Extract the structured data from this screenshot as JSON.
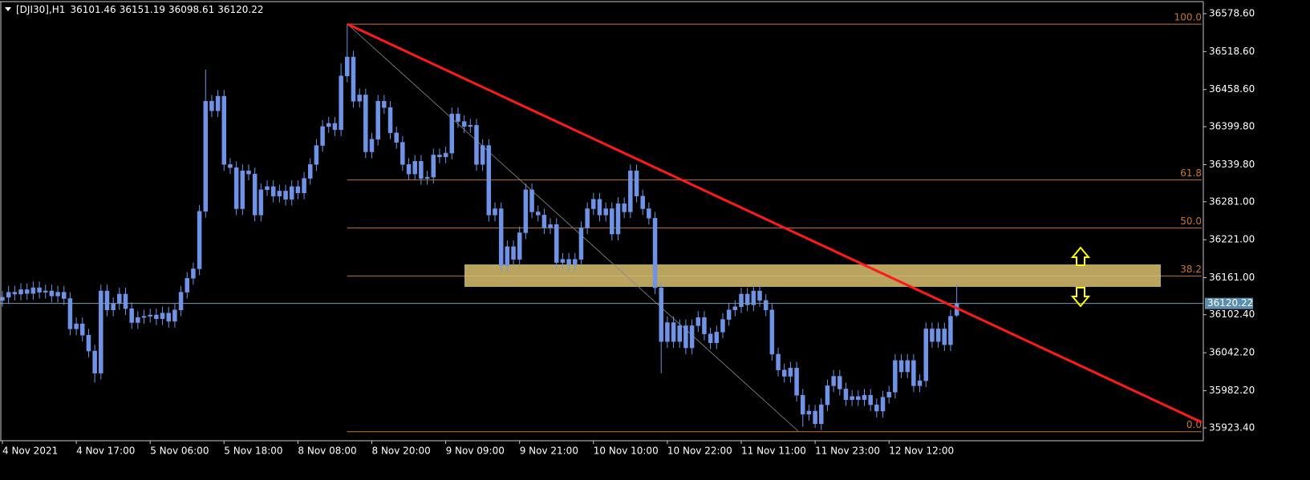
{
  "chart_data": {
    "type": "candlestick",
    "symbol": "[DJI30],H1",
    "candle_color": "#6f93e6",
    "categories": [
      "4 Nov 2021",
      null,
      null,
      null,
      null,
      null,
      null,
      null,
      null,
      null,
      null,
      null,
      "4 Nov 17:00",
      null,
      null,
      null,
      null,
      null,
      null,
      null,
      null,
      null,
      null,
      null,
      "5 Nov 06:00",
      null,
      null,
      null,
      null,
      null,
      null,
      null,
      null,
      null,
      null,
      null,
      "5 Nov 18:00",
      null,
      null,
      null,
      null,
      null,
      null,
      null,
      null,
      null,
      null,
      null,
      "8 Nov 08:00",
      null,
      null,
      null,
      null,
      null,
      null,
      null,
      null,
      null,
      null,
      null,
      "8 Nov 20:00",
      null,
      null,
      null,
      null,
      null,
      null,
      null,
      null,
      null,
      null,
      null,
      "9 Nov 09:00",
      null,
      null,
      null,
      null,
      null,
      null,
      null,
      null,
      null,
      null,
      null,
      "9 Nov 21:00",
      null,
      null,
      null,
      null,
      null,
      null,
      null,
      null,
      null,
      null,
      null,
      "10 Nov 10:00",
      null,
      null,
      null,
      null,
      null,
      null,
      null,
      null,
      null,
      null,
      null,
      "10 Nov 22:00",
      null,
      null,
      null,
      null,
      null,
      null,
      null,
      null,
      null,
      null,
      null,
      "11 Nov 11:00",
      null,
      null,
      null,
      null,
      null,
      null,
      null,
      null,
      null,
      null,
      null,
      "11 Nov 23:00",
      null,
      null,
      null,
      null,
      null,
      null,
      null,
      null,
      null,
      null,
      null,
      "12 Nov 12:00",
      null,
      null,
      null,
      null,
      null,
      null,
      null,
      null,
      null,
      null,
      null
    ],
    "open": [
      36125,
      36130,
      36138,
      36135,
      36142,
      36136,
      36145,
      36138,
      36140,
      36132,
      36138,
      36128,
      36080,
      36088,
      36070,
      36045,
      36010,
      36140,
      36110,
      36120,
      36135,
      36112,
      36090,
      36098,
      36100,
      36102,
      36096,
      36105,
      36092,
      36110,
      36138,
      36160,
      36175,
      36266,
      36440,
      36425,
      36448,
      36340,
      36335,
      36270,
      36330,
      36325,
      36260,
      36300,
      36305,
      36290,
      36298,
      36285,
      36305,
      36295,
      36318,
      36340,
      36370,
      36400,
      36405,
      36395,
      36480,
      36510,
      36440,
      36450,
      36360,
      36380,
      36440,
      36430,
      36390,
      36375,
      36340,
      36325,
      36345,
      36318,
      36320,
      36355,
      36352,
      36358,
      36420,
      36408,
      36400,
      36402,
      36340,
      36370,
      36260,
      36270,
      36180,
      36210,
      36190,
      36232,
      36300,
      36265,
      36260,
      36240,
      36245,
      36185,
      36190,
      36182,
      36190,
      36240,
      36270,
      36285,
      36260,
      36270,
      36230,
      36278,
      36265,
      36330,
      36290,
      36270,
      36255,
      36145,
      36060,
      36090,
      36060,
      36085,
      36050,
      36085,
      36098,
      36072,
      36058,
      36075,
      36095,
      36110,
      36115,
      36135,
      36118,
      36140,
      36125,
      36110,
      36040,
      36015,
      36005,
      36018,
      35975,
      35945,
      35950,
      35930,
      35960,
      35990,
      36005,
      35985,
      35968,
      35973,
      35968,
      35975,
      35960,
      35950,
      35972,
      35980,
      36030,
      36012,
      36030,
      35990,
      35998,
      36080,
      36060,
      36080,
      36055,
      36101.46
    ],
    "high": [
      36140,
      36148,
      36148,
      36152,
      36152,
      36155,
      36155,
      36150,
      36150,
      36148,
      36148,
      36138,
      36098,
      36098,
      36080,
      36055,
      36150,
      36150,
      36130,
      36145,
      36145,
      36122,
      36108,
      36110,
      36112,
      36112,
      36115,
      36115,
      36120,
      36148,
      36170,
      36185,
      36276,
      36490,
      36450,
      36458,
      36458,
      36350,
      36345,
      36340,
      36340,
      36335,
      36310,
      36315,
      36315,
      36308,
      36308,
      36315,
      36315,
      36328,
      36350,
      36380,
      36410,
      36415,
      36415,
      36500,
      36562,
      36520,
      36460,
      36460,
      36390,
      36450,
      36450,
      36440,
      36400,
      36385,
      36350,
      36355,
      36355,
      36330,
      36365,
      36365,
      36368,
      36430,
      36430,
      36418,
      36412,
      36412,
      36380,
      36380,
      36280,
      36280,
      36220,
      36220,
      36242,
      36310,
      36310,
      36275,
      36270,
      36255,
      36255,
      36200,
      36200,
      36200,
      36250,
      36280,
      36295,
      36295,
      36280,
      36280,
      36288,
      36288,
      36340,
      36340,
      36300,
      36280,
      36265,
      36155,
      36100,
      36100,
      36095,
      36095,
      36095,
      36108,
      36108,
      36082,
      36085,
      36105,
      36120,
      36125,
      36145,
      36145,
      36150,
      36150,
      36135,
      36120,
      36050,
      36025,
      36028,
      36028,
      35985,
      35960,
      35960,
      35970,
      36000,
      36015,
      36015,
      35995,
      35983,
      35983,
      35985,
      35985,
      35970,
      35982,
      35990,
      36040,
      36040,
      36040,
      36040,
      36008,
      36090,
      36090,
      36090,
      36090,
      36110,
      36151.19
    ],
    "low": [
      36115,
      36120,
      36125,
      36125,
      36126,
      36126,
      36128,
      36128,
      36122,
      36122,
      36118,
      36070,
      36070,
      36060,
      36035,
      35995,
      36000,
      36100,
      36100,
      36110,
      36102,
      36080,
      36080,
      36088,
      36090,
      36086,
      36086,
      36082,
      36082,
      36100,
      36128,
      36150,
      36165,
      36256,
      36415,
      36415,
      36330,
      36325,
      36260,
      36260,
      36315,
      36250,
      36250,
      36290,
      36280,
      36280,
      36275,
      36275,
      36285,
      36285,
      36308,
      36330,
      36360,
      36390,
      36385,
      36385,
      36470,
      36430,
      36430,
      36350,
      36350,
      36370,
      36420,
      36380,
      36365,
      36330,
      36315,
      36315,
      36308,
      36308,
      36310,
      36342,
      36342,
      36348,
      36398,
      36390,
      36390,
      36330,
      36330,
      36250,
      36250,
      36170,
      36170,
      36180,
      36180,
      36222,
      36255,
      36250,
      36230,
      36230,
      36175,
      36175,
      36172,
      36172,
      36180,
      36230,
      36260,
      36250,
      36250,
      36220,
      36220,
      36255,
      36255,
      36280,
      36260,
      36245,
      36135,
      36010,
      36050,
      36050,
      36050,
      36040,
      36040,
      36075,
      36062,
      36048,
      36048,
      36065,
      36085,
      36100,
      36105,
      36108,
      36108,
      36115,
      36100,
      36030,
      36005,
      35995,
      35995,
      35965,
      35925,
      35935,
      35923.4,
      35920,
      35950,
      35980,
      35975,
      35958,
      35958,
      35958,
      35958,
      35950,
      35940,
      35940,
      35962,
      35970,
      36002,
      36002,
      35980,
      35980,
      35988,
      36050,
      36050,
      36045,
      36045,
      36098.61
    ],
    "close": [
      36130,
      36138,
      36135,
      36142,
      36136,
      36145,
      36138,
      36140,
      36132,
      36138,
      36128,
      36080,
      36088,
      36070,
      36045,
      36010,
      36140,
      36110,
      36120,
      36135,
      36112,
      36090,
      36098,
      36100,
      36102,
      36096,
      36105,
      36092,
      36110,
      36138,
      36160,
      36175,
      36266,
      36440,
      36425,
      36448,
      36340,
      36335,
      36270,
      36330,
      36325,
      36260,
      36300,
      36305,
      36290,
      36298,
      36285,
      36305,
      36295,
      36318,
      36340,
      36370,
      36400,
      36405,
      36395,
      36480,
      36510,
      36440,
      36450,
      36360,
      36380,
      36440,
      36430,
      36390,
      36375,
      36340,
      36325,
      36345,
      36318,
      36320,
      36355,
      36352,
      36358,
      36420,
      36408,
      36400,
      36402,
      36340,
      36370,
      36260,
      36270,
      36180,
      36210,
      36190,
      36232,
      36300,
      36265,
      36260,
      36240,
      36245,
      36185,
      36190,
      36182,
      36190,
      36240,
      36270,
      36285,
      36260,
      36270,
      36230,
      36278,
      36265,
      36330,
      36290,
      36270,
      36255,
      36145,
      36060,
      36090,
      36060,
      36085,
      36050,
      36085,
      36098,
      36072,
      36058,
      36075,
      36095,
      36110,
      36115,
      36135,
      36118,
      36140,
      36125,
      36110,
      36040,
      36015,
      36005,
      36018,
      35975,
      35945,
      35950,
      35930,
      35960,
      35990,
      36005,
      35985,
      35968,
      35973,
      35968,
      35975,
      35960,
      35950,
      35972,
      35980,
      36030,
      36012,
      36030,
      35990,
      35998,
      36080,
      36060,
      36080,
      36055,
      36100,
      36120.22
    ],
    "ylim": [
      35903.1,
      36597.6
    ],
    "yticks": [
      {
        "value": 36578.6,
        "label": "36578.60"
      },
      {
        "value": 36518.6,
        "label": "36518.60"
      },
      {
        "value": 36458.6,
        "label": "36458.60"
      },
      {
        "value": 36399.8,
        "label": "36399.80"
      },
      {
        "value": 36339.8,
        "label": "36339.80"
      },
      {
        "value": 36281,
        "label": "36281.00"
      },
      {
        "value": 36221,
        "label": "36221.00"
      },
      {
        "value": 36161,
        "label": "36161.00"
      },
      {
        "value": 36102.4,
        "label": "36102.40"
      },
      {
        "value": 36042.2,
        "label": "36042.20"
      },
      {
        "value": 35982.2,
        "label": "35982.20"
      },
      {
        "value": 35923.4,
        "label": "35923.40"
      }
    ],
    "fib_color": "#c87533",
    "fib_high": 36562,
    "fib_low": 35917.4,
    "fib_levels": [
      {
        "value": 100,
        "label": "100.0"
      },
      61.8,
      {
        "value": 50,
        "label": "50.0"
      },
      38.2,
      {
        "value": 0,
        "label": "0.0"
      }
    ]
  }
}
